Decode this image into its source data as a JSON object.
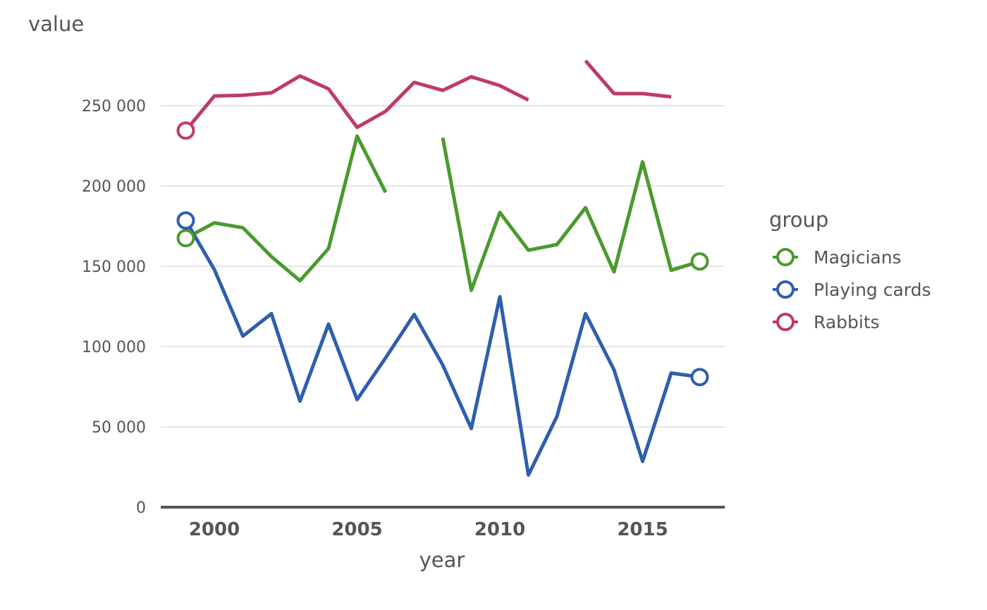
{
  "chart_data": {
    "type": "line",
    "ylabel": "value",
    "xlabel": "year",
    "xlim": [
      1998,
      2018
    ],
    "ylim": [
      0,
      280000
    ],
    "x_ticks": [
      2000,
      2005,
      2010,
      2015
    ],
    "x_tick_labels": [
      "2000",
      "2005",
      "2010",
      "2015"
    ],
    "y_ticks": [
      0,
      50000,
      100000,
      150000,
      200000,
      250000
    ],
    "y_tick_labels": [
      "0",
      "50 000",
      "100 000",
      "150 000",
      "200 000",
      "250 000"
    ],
    "grid": "horizontal",
    "legend": {
      "title": "group",
      "placement": "right"
    },
    "x": [
      1999,
      2000,
      2001,
      2002,
      2003,
      2004,
      2005,
      2006,
      2007,
      2008,
      2009,
      2010,
      2011,
      2012,
      2013,
      2014,
      2015,
      2016,
      2017
    ],
    "series": [
      {
        "name": "Magicians",
        "color": "#4a9a2e",
        "values": [
          167500,
          177000,
          174000,
          156000,
          141000,
          161000,
          231000,
          196000,
          null,
          230000,
          135000,
          183500,
          160000,
          163500,
          186500,
          146500,
          215000,
          147500,
          153000
        ]
      },
      {
        "name": "Playing cards",
        "color": "#2e5fad",
        "values": [
          178500,
          148000,
          106500,
          120500,
          66000,
          114000,
          67000,
          93000,
          120000,
          88500,
          49000,
          131000,
          20000,
          56500,
          120500,
          85500,
          28500,
          83500,
          81000
        ]
      },
      {
        "name": "Rabbits",
        "color": "#c0396e",
        "values": [
          234500,
          256000,
          256500,
          258000,
          268500,
          260500,
          236500,
          246500,
          264500,
          259500,
          268000,
          262500,
          253500,
          null,
          278000,
          257500,
          257500,
          255500,
          null
        ]
      }
    ],
    "end_markers": "open-circle"
  }
}
